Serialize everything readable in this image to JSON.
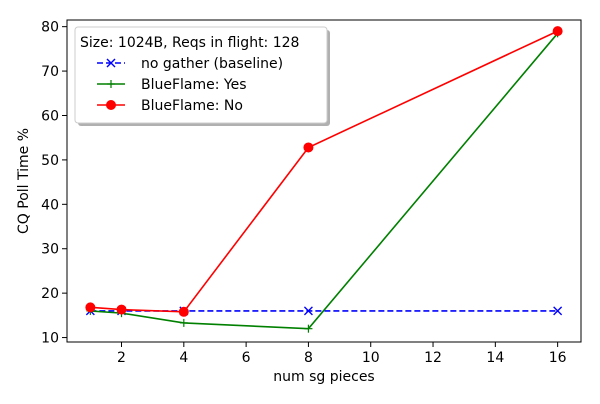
{
  "chart_data": {
    "type": "line",
    "xlabel": "num sg pieces",
    "ylabel": "CQ Poll Time %",
    "xlim": [
      0.25,
      16.75
    ],
    "ylim": [
      9.0,
      81.5
    ],
    "xticks": [
      2,
      4,
      6,
      8,
      10,
      12,
      14,
      16
    ],
    "yticks": [
      10,
      20,
      30,
      40,
      50,
      60,
      70,
      80
    ],
    "grid": false,
    "legend_title": "Size: 1024B, Reqs in flight: 128",
    "legend_position": "top-left",
    "series": [
      {
        "name": "no gather (baseline)",
        "color": "#0000ff",
        "linestyle": "dashed",
        "marker": "x",
        "x": [
          1,
          2,
          4,
          8,
          16
        ],
        "y": [
          16.0,
          16.0,
          16.0,
          16.0,
          16.0
        ]
      },
      {
        "name": "BlueFlame: Yes",
        "color": "#008000",
        "linestyle": "solid",
        "marker": "plus",
        "x": [
          1,
          2,
          4,
          8,
          16
        ],
        "y": [
          16.0,
          15.5,
          13.3,
          12.0,
          78.5
        ]
      },
      {
        "name": "BlueFlame: No",
        "color": "#ff0000",
        "linestyle": "solid",
        "marker": "circle",
        "x": [
          1,
          2,
          4,
          8,
          16
        ],
        "y": [
          16.8,
          16.3,
          15.8,
          52.8,
          79.0
        ]
      }
    ]
  }
}
